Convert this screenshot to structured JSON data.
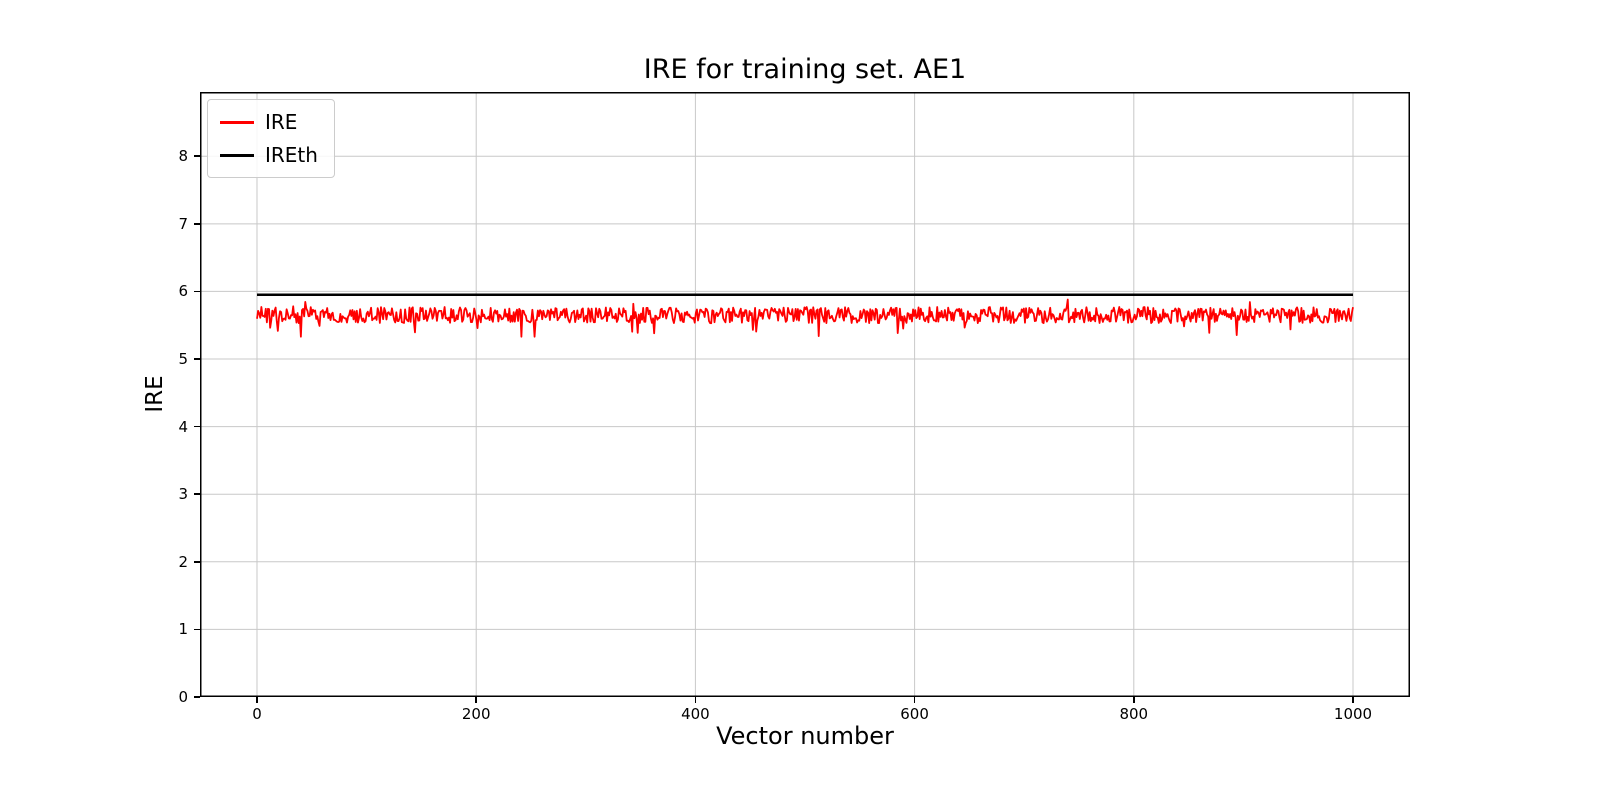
{
  "chart_data": {
    "type": "line",
    "title": "IRE for training set. AE1",
    "xlabel": "Vector number",
    "ylabel": "IRE",
    "xlim": [
      -52,
      1052
    ],
    "ylim": [
      0,
      8.95
    ],
    "x_ticks": [
      0,
      200,
      400,
      600,
      800,
      1000
    ],
    "y_ticks": [
      0,
      1,
      2,
      3,
      4,
      5,
      6,
      7,
      8
    ],
    "grid": true,
    "grid_color": "#c8c8c8",
    "spine_color": "#000000",
    "legend_position": "upper left",
    "series": [
      {
        "name": "IRE",
        "color": "#ff0000",
        "style": "noisy-line",
        "x_start": 0,
        "x_end": 1000,
        "n_points": 1000,
        "mean": 5.65,
        "noise_amplitude": 0.12,
        "spike_probability": 0.06,
        "spike_amplitude": 0.28,
        "min": 5.33,
        "max": 5.96,
        "seed": 20240615,
        "line_width": 1.8
      },
      {
        "name": "IREth",
        "color": "#000000",
        "style": "constant-line",
        "x_start": 0,
        "x_end": 1000,
        "value": 5.95,
        "line_width": 2.5
      }
    ]
  }
}
